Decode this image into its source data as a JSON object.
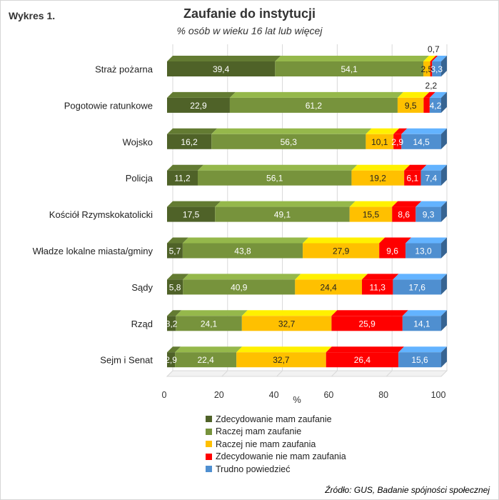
{
  "figure_label": "Wykres 1.",
  "source": "Źródło: GUS, Badanie spójności społecznej",
  "chart_data": {
    "type": "bar",
    "orientation": "horizontal",
    "stacked": true,
    "title": "Zaufanie do instytucji",
    "subtitle": "% osób w wieku 16 lat lub więcej",
    "xlabel": "%",
    "ylabel": "",
    "xlim": [
      0,
      100
    ],
    "xticks": [
      "0",
      "20",
      "40",
      "60",
      "80",
      "100"
    ],
    "grid": true,
    "legend_position": "bottom",
    "categories": [
      "Straż pożarna",
      "Pogotowie ratunkowe",
      "Wojsko",
      "Policja",
      "Kościół Rzymskokatolicki",
      "Władze lokalne miasta/gminy",
      "Sądy",
      "Rząd",
      "Sejm i Senat"
    ],
    "series": [
      {
        "name": "Zdecydowanie mam zaufanie",
        "color": "#4f6228",
        "values": [
          39.4,
          22.9,
          16.2,
          11.2,
          17.5,
          5.7,
          5.8,
          3.2,
          2.9
        ],
        "labels": [
          "39,4",
          "22,9",
          "16,2",
          "11,2",
          "17,5",
          "5,7",
          "5,8",
          "3,2",
          "2,9"
        ]
      },
      {
        "name": "Raczej mam zaufanie",
        "color": "#77933c",
        "values": [
          54.1,
          61.2,
          56.3,
          56.1,
          49.1,
          43.8,
          40.9,
          24.1,
          22.4
        ],
        "labels": [
          "54,1",
          "61,2",
          "56,3",
          "56,1",
          "49,1",
          "43,8",
          "40,9",
          "24,1",
          "22,4"
        ]
      },
      {
        "name": "Raczej nie mam zaufania",
        "color": "#ffc000",
        "values": [
          2.5,
          9.5,
          10.1,
          19.2,
          15.5,
          27.9,
          24.4,
          32.7,
          32.7
        ],
        "labels": [
          "2,5",
          "9,5",
          "10,1",
          "19,2",
          "15,5",
          "27,9",
          "24,4",
          "32,7",
          "32,7"
        ]
      },
      {
        "name": "Zdecydowanie nie mam zaufania",
        "color": "#ff0000",
        "values": [
          0.7,
          2.2,
          2.9,
          6.1,
          8.6,
          9.6,
          11.3,
          25.9,
          26.4
        ],
        "labels": [
          "0,7",
          "2,2",
          "2,9",
          "6,1",
          "8,6",
          "9,6",
          "11,3",
          "25,9",
          "26,4"
        ]
      },
      {
        "name": "Trudno powiedzieć",
        "color": "#4f8fd0",
        "values": [
          3.3,
          4.2,
          14.5,
          7.4,
          9.3,
          13.0,
          17.6,
          14.1,
          15.6
        ],
        "labels": [
          "3,3",
          "4,2",
          "14,5",
          "7,4",
          "9,3",
          "13,0",
          "17,6",
          "14,1",
          "15,6"
        ]
      }
    ]
  }
}
